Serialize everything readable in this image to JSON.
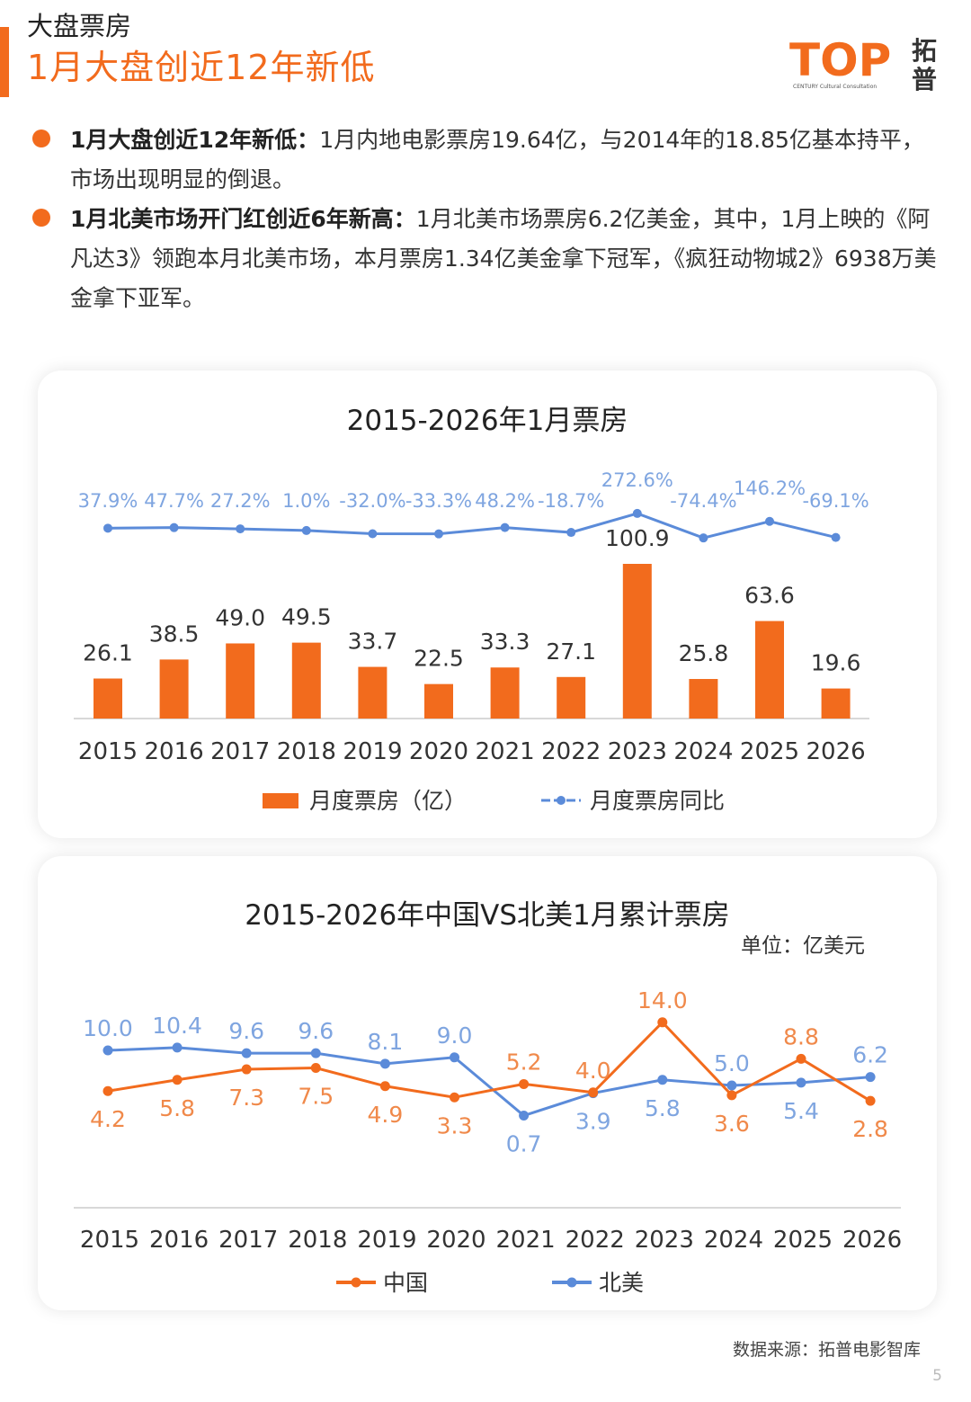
{
  "header": {
    "kicker": "大盘票房",
    "headline": "1月大盘创近12年新低",
    "logo_text": "TOP",
    "logo_cn": "拓普",
    "logo_sub": "CENTURY Cultural Consultation"
  },
  "bullets": [
    {
      "lead": "1月大盘创近12年新低：",
      "text": "1月内地电影票房19.64亿，与2014年的18.85亿基本持平，市场出现明显的倒退。"
    },
    {
      "lead": "1月北美市场开门红创近6年新高：",
      "text": "1月北美市场票房6.2亿美金，其中，1月上映的《阿凡达3》领跑本月北美市场，本月票房1.34亿美金拿下冠军，《疯狂动物城2》6938万美金拿下亚军。"
    }
  ],
  "colors": {
    "accent": "#f26b1d",
    "blue": "#5b8bd9",
    "blue_label": "#7fa5e0"
  },
  "chart_data": [
    {
      "type": "bar",
      "title": "2015-2026年1月票房",
      "categories": [
        "2015",
        "2016",
        "2017",
        "2018",
        "2019",
        "2020",
        "2021",
        "2022",
        "2023",
        "2024",
        "2025",
        "2026"
      ],
      "series": [
        {
          "name": "月度票房（亿）",
          "type": "bar",
          "values": [
            26.1,
            38.5,
            49.0,
            49.5,
            33.7,
            22.5,
            33.3,
            27.1,
            100.9,
            25.8,
            63.6,
            19.6
          ],
          "labels": [
            "26.1",
            "38.5",
            "49.0",
            "49.5",
            "33.7",
            "22.5",
            "33.3",
            "27.1",
            "100.9",
            "25.8",
            "63.6",
            "19.6"
          ]
        },
        {
          "name": "月度票房同比",
          "type": "line",
          "values": [
            37.9,
            47.7,
            27.2,
            1.0,
            -32.0,
            -33.3,
            48.2,
            -18.7,
            272.6,
            -74.4,
            146.2,
            -69.1
          ],
          "labels": [
            "37.9%",
            "47.7%",
            "27.2%",
            "1.0%",
            "-32.0%",
            "-33.3%",
            "48.2%",
            "-18.7%",
            "272.6%",
            "-74.4%",
            "146.2%",
            "-69.1%"
          ]
        }
      ],
      "legend_position": "bottom"
    },
    {
      "type": "line",
      "title": "2015-2026年中国VS北美1月累计票房",
      "unit_label": "单位：亿美元",
      "categories": [
        "2015",
        "2016",
        "2017",
        "2018",
        "2019",
        "2020",
        "2021",
        "2022",
        "2023",
        "2024",
        "2025",
        "2026"
      ],
      "series": [
        {
          "name": "中国",
          "values": [
            4.2,
            5.8,
            7.3,
            7.5,
            4.9,
            3.3,
            5.2,
            4.0,
            14.0,
            3.6,
            8.8,
            2.8
          ],
          "labels": [
            "4.2",
            "5.8",
            "7.3",
            "7.5",
            "4.9",
            "3.3",
            "5.2",
            "4.0",
            "14.0",
            "3.6",
            "8.8",
            "2.8"
          ]
        },
        {
          "name": "北美",
          "values": [
            10.0,
            10.4,
            9.6,
            9.6,
            8.1,
            9.0,
            0.7,
            3.9,
            5.8,
            5.0,
            5.4,
            6.2
          ],
          "labels": [
            "10.0",
            "10.4",
            "9.6",
            "9.6",
            "8.1",
            "9.0",
            "0.7",
            "3.9",
            "5.8",
            "5.0",
            "5.4",
            "6.2"
          ]
        }
      ],
      "legend_position": "bottom"
    }
  ],
  "footer": {
    "source": "数据来源：拓普电影智库",
    "page": "5"
  }
}
